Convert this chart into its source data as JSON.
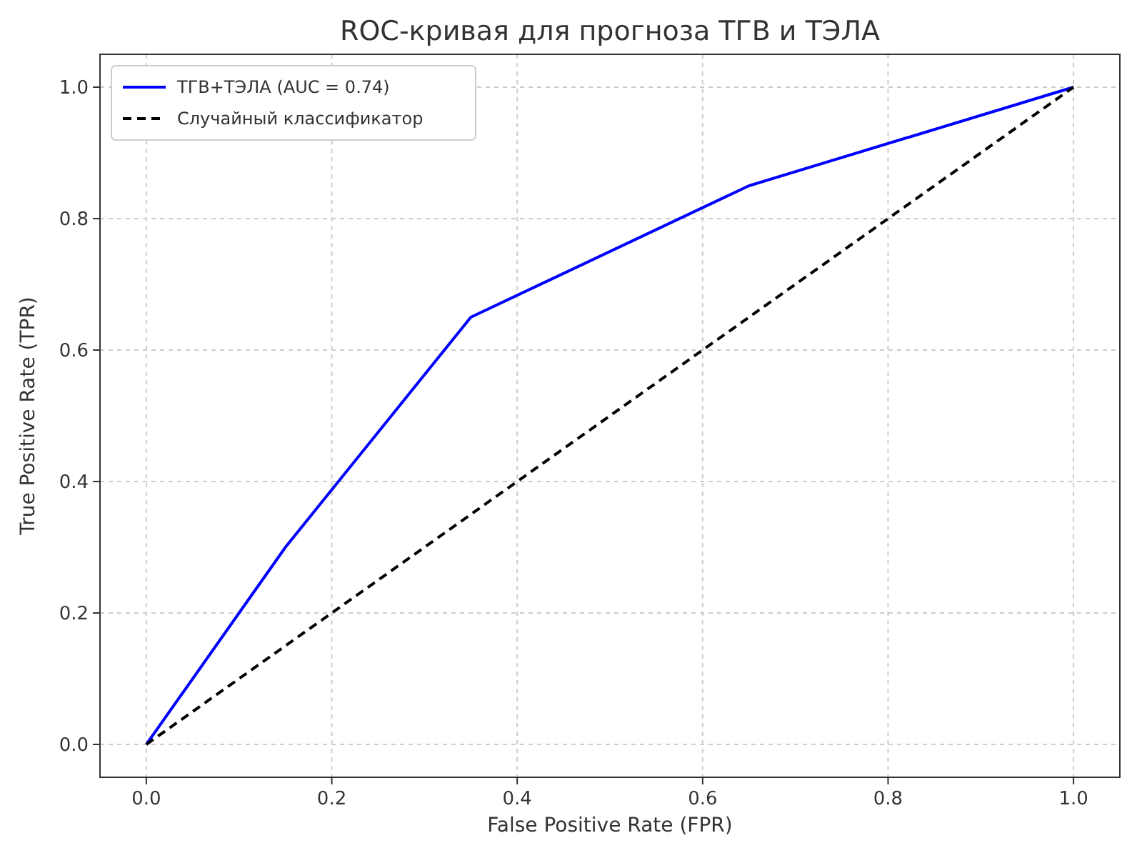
{
  "chart_data": {
    "type": "line",
    "title": "ROC-кривая для прогноза ТГВ и ТЭЛА",
    "xlabel": "False Positive Rate (FPR)",
    "ylabel": "True Positive Rate (TPR)",
    "xlim": [
      -0.05,
      1.05
    ],
    "ylim": [
      -0.05,
      1.05
    ],
    "xticks": [
      {
        "value": 0,
        "label": "0.0"
      },
      0.2,
      0.4,
      0.6,
      0.8,
      {
        "value": 1,
        "label": "1.0"
      }
    ],
    "yticks": [
      {
        "value": 0,
        "label": "0.0"
      },
      0.2,
      0.4,
      0.6,
      0.8,
      {
        "value": 1,
        "label": "1.0"
      }
    ],
    "grid": true,
    "legend": "top left",
    "series": [
      {
        "name": "ТГВ+ТЭЛА (AUC = 0.74)",
        "color": "#0000ff",
        "x": [
          0,
          0.15,
          0.35,
          0.65,
          1
        ],
        "values": [
          0,
          0.3,
          0.65,
          0.85,
          1
        ],
        "line_style": "solid"
      },
      {
        "name": "Случайный классификатор",
        "color": "#000000",
        "x": [
          0,
          1
        ],
        "values": [
          0,
          1
        ],
        "line_style": "dashed"
      }
    ]
  }
}
